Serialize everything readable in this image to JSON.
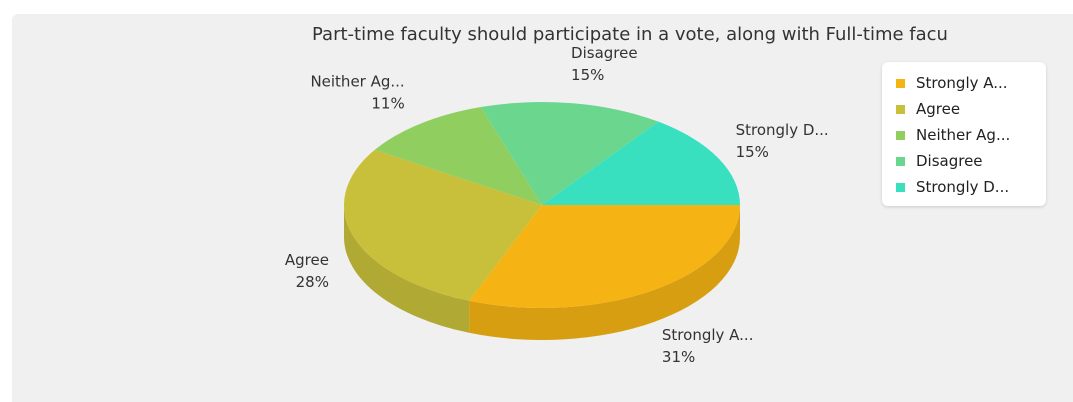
{
  "chart_data": {
    "type": "pie",
    "title": "Part-time faculty should participate in a vote, along with Full-time facu",
    "slices": [
      {
        "label": "Strongly A...",
        "value": 31,
        "percent_label": "31%",
        "color": "#f5b314"
      },
      {
        "label": "Agree",
        "value": 28,
        "percent_label": "28%",
        "color": "#c8c03a"
      },
      {
        "label": "Neither Ag...",
        "value": 11,
        "percent_label": "11%",
        "color": "#90cf5f"
      },
      {
        "label": "Disagree",
        "value": 15,
        "percent_label": "15%",
        "color": "#6ad68e"
      },
      {
        "label": "Strongly D...",
        "value": 15,
        "percent_label": "15%",
        "color": "#38e0c0"
      }
    ],
    "legend_position": "top-right",
    "style": "3d"
  }
}
